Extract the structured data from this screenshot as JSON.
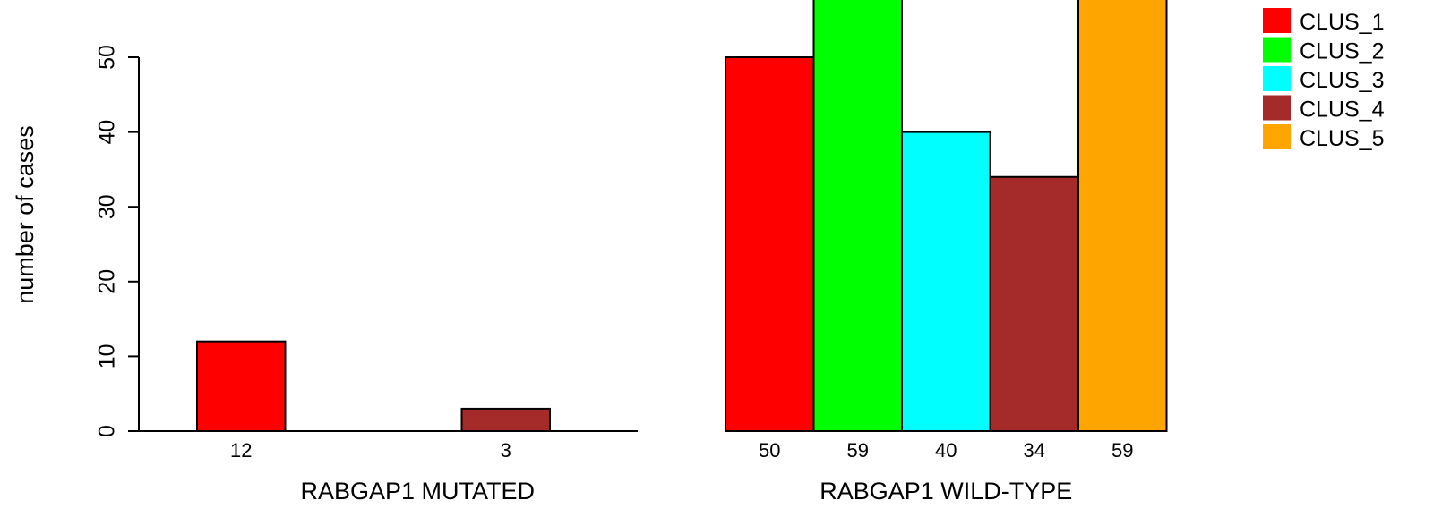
{
  "chart_data": {
    "type": "bar",
    "ylabel": "number of cases",
    "ylim": [
      0,
      60
    ],
    "yticks": [
      0,
      10,
      20,
      30,
      40,
      50
    ],
    "legend_position": "top-right",
    "legend": [
      {
        "label": "CLUS_1",
        "color": "#FF0000"
      },
      {
        "label": "CLUS_2",
        "color": "#00FF00"
      },
      {
        "label": "CLUS_3",
        "color": "#00FFFF"
      },
      {
        "label": "CLUS_4",
        "color": "#A52A2A"
      },
      {
        "label": "CLUS_5",
        "color": "#FFA500"
      }
    ],
    "panels": [
      {
        "xlabel": "RABGAP1 MUTATED",
        "series": [
          "CLUS_1",
          "CLUS_2",
          "CLUS_3",
          "CLUS_4",
          "CLUS_5"
        ],
        "values": [
          12,
          0,
          0,
          3,
          0
        ],
        "value_labels": [
          "12",
          "",
          "",
          "3",
          ""
        ]
      },
      {
        "xlabel": "RABGAP1 WILD-TYPE",
        "series": [
          "CLUS_1",
          "CLUS_2",
          "CLUS_3",
          "CLUS_4",
          "CLUS_5"
        ],
        "values": [
          50,
          59,
          40,
          34,
          59
        ],
        "value_labels": [
          "50",
          "59",
          "40",
          "34",
          "59"
        ]
      }
    ]
  }
}
